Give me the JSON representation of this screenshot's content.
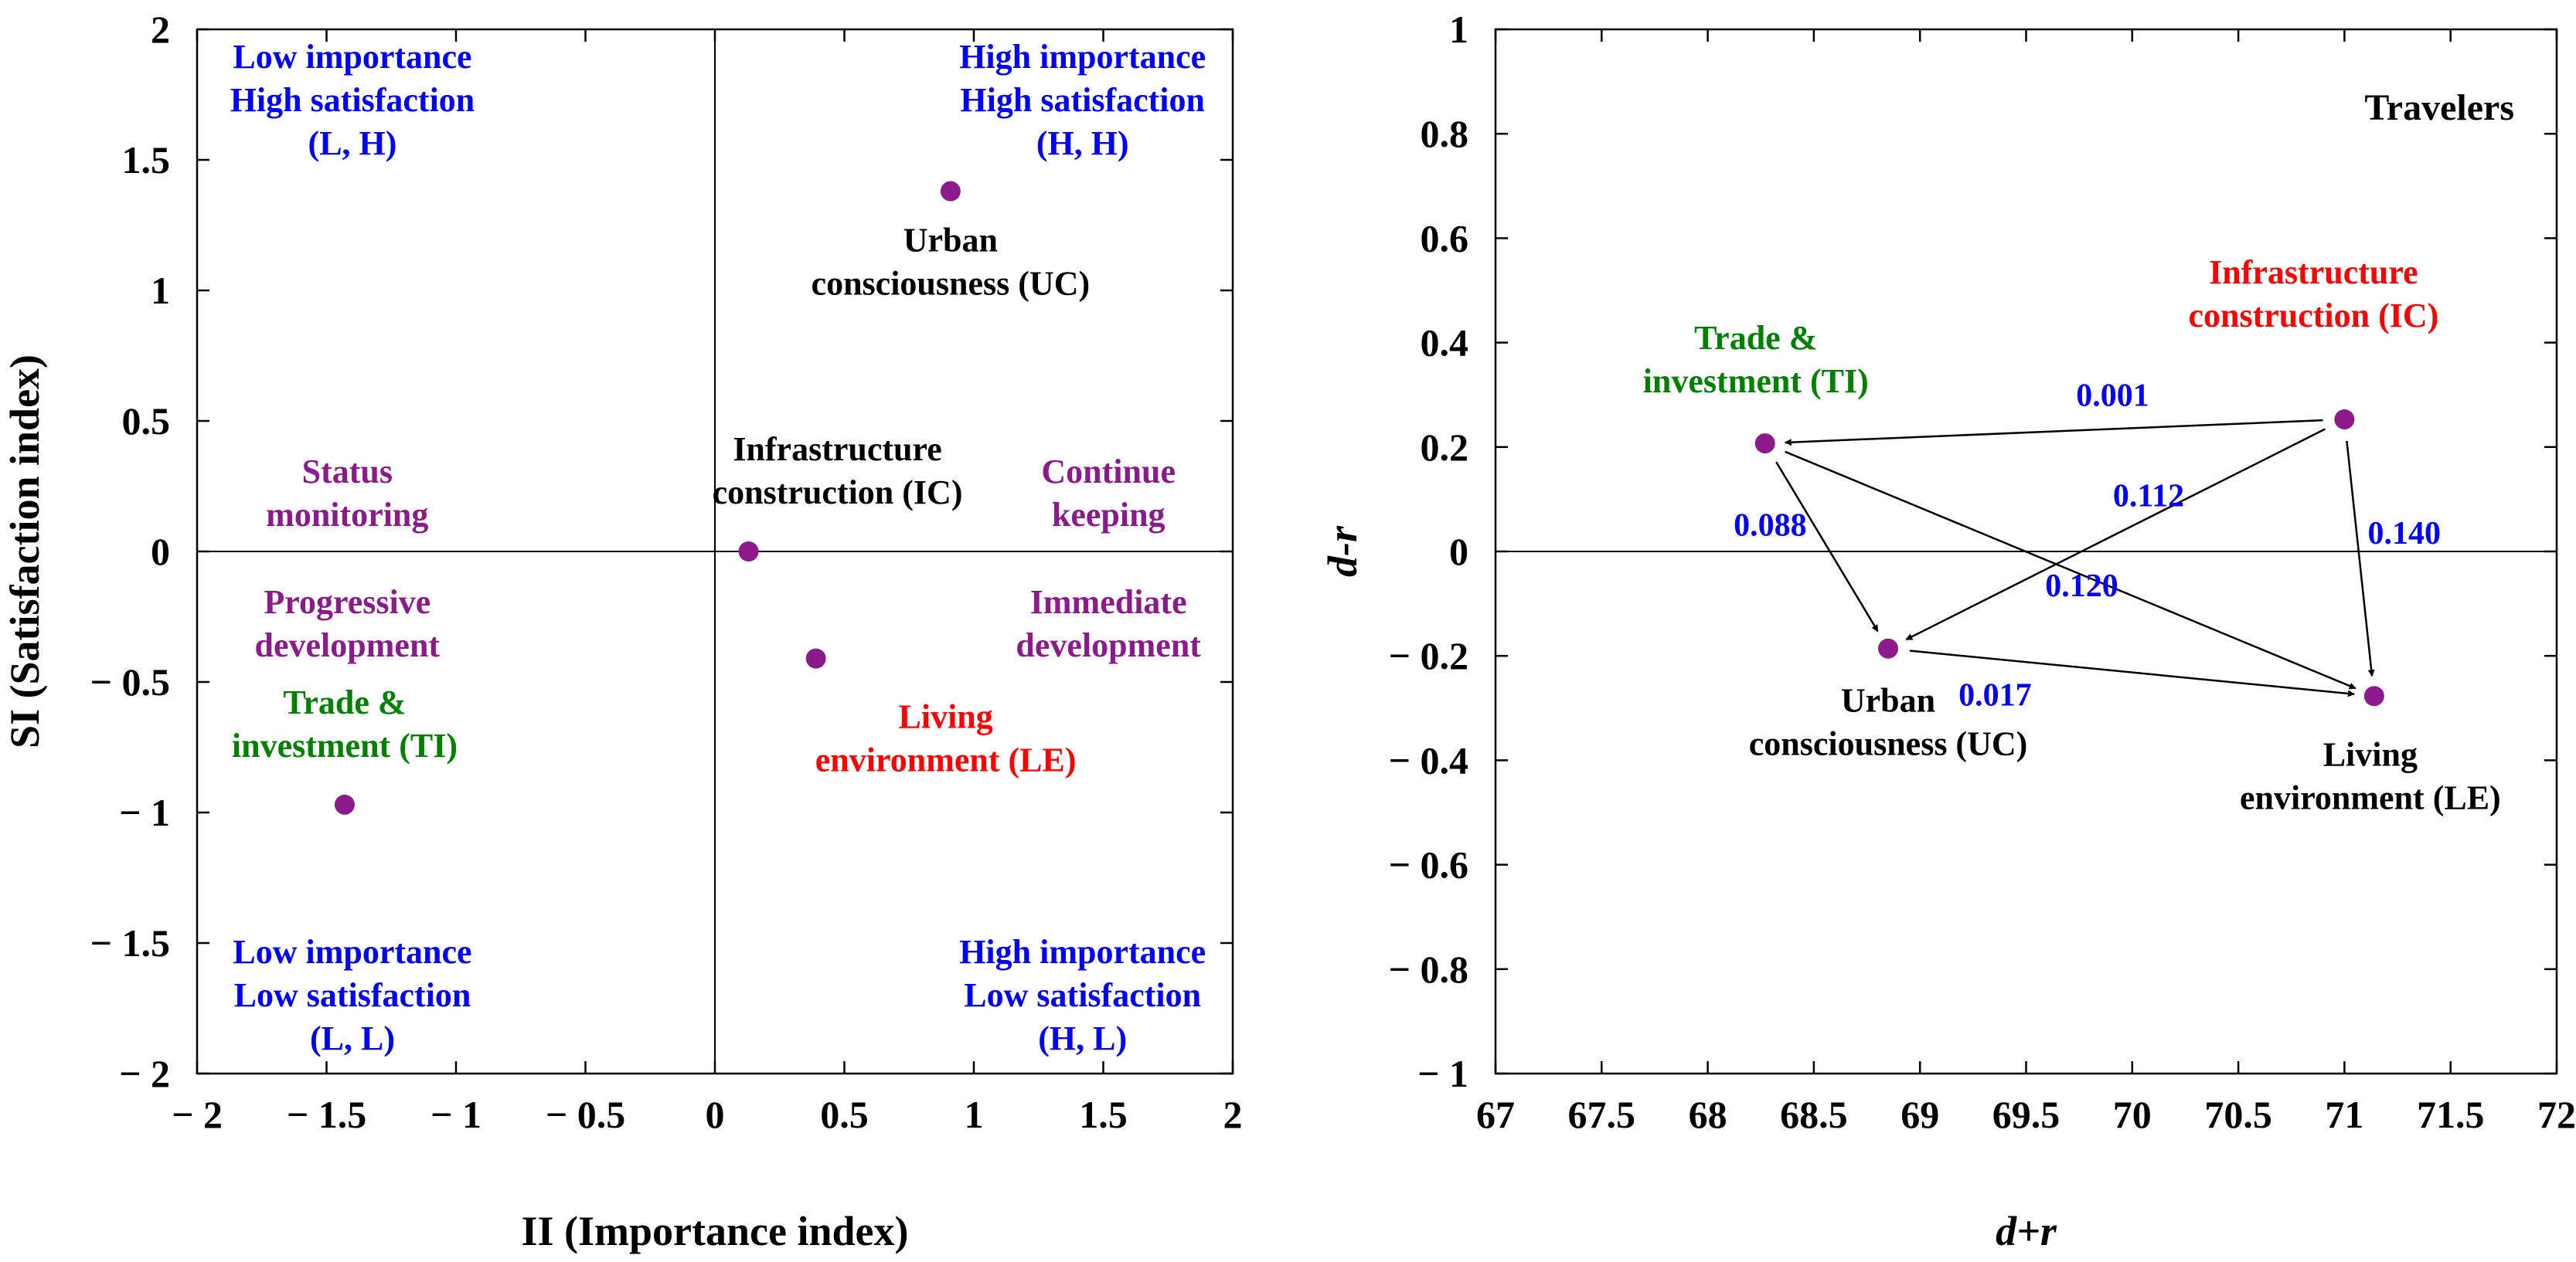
{
  "colors": {
    "point": "#8B1A8B",
    "quadrant": "#0000FF",
    "strategy": "#8B1A8B",
    "neutral": "#000000",
    "green": "#008000",
    "red": "#FF0000",
    "edge_label": "#0000FF"
  },
  "chart_data": [
    {
      "type": "scatter",
      "panel": "left",
      "xlabel": "II (Importance index)",
      "ylabel": "SI (Satisfaction index)",
      "xlim": [
        -2,
        2
      ],
      "ylim": [
        -2,
        2
      ],
      "xticks": [
        "− 2",
        "− 1.5",
        "− 1",
        "− 0.5",
        "0",
        "0.5",
        "1",
        "1.5",
        "2"
      ],
      "yticks": [
        "− 2",
        "− 1.5",
        "− 1",
        "− 0.5",
        "0",
        "0.5",
        "1",
        "1.5",
        "2"
      ],
      "points": [
        {
          "id": "UC",
          "x": 0.91,
          "y": 1.38,
          "label": [
            "Urban",
            "consciousness (UC)"
          ],
          "color": "neutral"
        },
        {
          "id": "IC",
          "x": 0.13,
          "y": 0.0,
          "label": [
            "Infrastructure",
            "construction (IC)"
          ],
          "color": "neutral"
        },
        {
          "id": "LE",
          "x": 0.39,
          "y": -0.41,
          "label": [
            "Living",
            "environment (LE)"
          ],
          "color": "red"
        },
        {
          "id": "TI",
          "x": -1.43,
          "y": -0.97,
          "label": [
            "Trade &",
            "investment (TI)"
          ],
          "color": "green"
        }
      ],
      "quadrant_labels": [
        {
          "lines": [
            "Low importance",
            "High satisfaction",
            "(L, H)"
          ],
          "anchor": [
            -1.4,
            1.9
          ]
        },
        {
          "lines": [
            "High importance",
            "High satisfaction",
            "(H, H)"
          ],
          "anchor": [
            1.42,
            1.9
          ]
        },
        {
          "lines": [
            "Low importance",
            "Low satisfaction",
            "(L, L)"
          ],
          "anchor": [
            -1.4,
            -1.53
          ]
        },
        {
          "lines": [
            "High importance",
            "Low satisfaction",
            "(H, L)"
          ],
          "anchor": [
            1.42,
            -1.53
          ]
        }
      ],
      "strategy_labels": [
        {
          "lines": [
            "Status",
            "monitoring"
          ],
          "anchor": [
            -1.42,
            0.31
          ]
        },
        {
          "lines": [
            "Continue",
            "keeping"
          ],
          "anchor": [
            1.52,
            0.31
          ]
        },
        {
          "lines": [
            "Progressive",
            "development"
          ],
          "anchor": [
            -1.42,
            -0.19
          ]
        },
        {
          "lines": [
            "Immediate",
            "development"
          ],
          "anchor": [
            1.52,
            -0.19
          ]
        }
      ]
    },
    {
      "type": "scatter",
      "panel": "right",
      "title": "Travelers",
      "xlabel": "d+r",
      "ylabel": "d-r",
      "xlim": [
        67,
        72
      ],
      "ylim": [
        -1,
        1
      ],
      "xticks": [
        "67",
        "67.5",
        "68",
        "68.5",
        "69",
        "69.5",
        "70",
        "70.5",
        "71",
        "71.5",
        "72"
      ],
      "yticks": [
        "− 1",
        "− 0.8",
        "− 0.6",
        "− 0.4",
        "− 0.2",
        "0",
        "0.2",
        "0.4",
        "0.6",
        "0.8",
        "1"
      ],
      "points": [
        {
          "id": "TI",
          "x": 68.27,
          "y": 0.207,
          "label": [
            "Trade &",
            "investment (TI)"
          ],
          "color": "green"
        },
        {
          "id": "IC",
          "x": 71.0,
          "y": 0.253,
          "label": [
            "Infrastructure",
            "construction (IC)"
          ],
          "color": "red"
        },
        {
          "id": "UC",
          "x": 68.85,
          "y": -0.186,
          "label": [
            "Urban",
            "consciousness (UC)"
          ],
          "color": "neutral"
        },
        {
          "id": "LE",
          "x": 71.14,
          "y": -0.277,
          "label": [
            "Living",
            "environment (LE)"
          ],
          "color": "neutral"
        }
      ],
      "edges": [
        {
          "from": "IC",
          "to": "TI",
          "value": "0.001"
        },
        {
          "from": "IC",
          "to": "UC",
          "value": "0.112"
        },
        {
          "from": "IC",
          "to": "LE",
          "value": "0.140"
        },
        {
          "from": "TI",
          "to": "UC",
          "value": "0.088"
        },
        {
          "from": "TI",
          "to": "LE",
          "value": "0.120"
        },
        {
          "from": "UC",
          "to": "LE",
          "value": "0.017"
        }
      ]
    }
  ]
}
